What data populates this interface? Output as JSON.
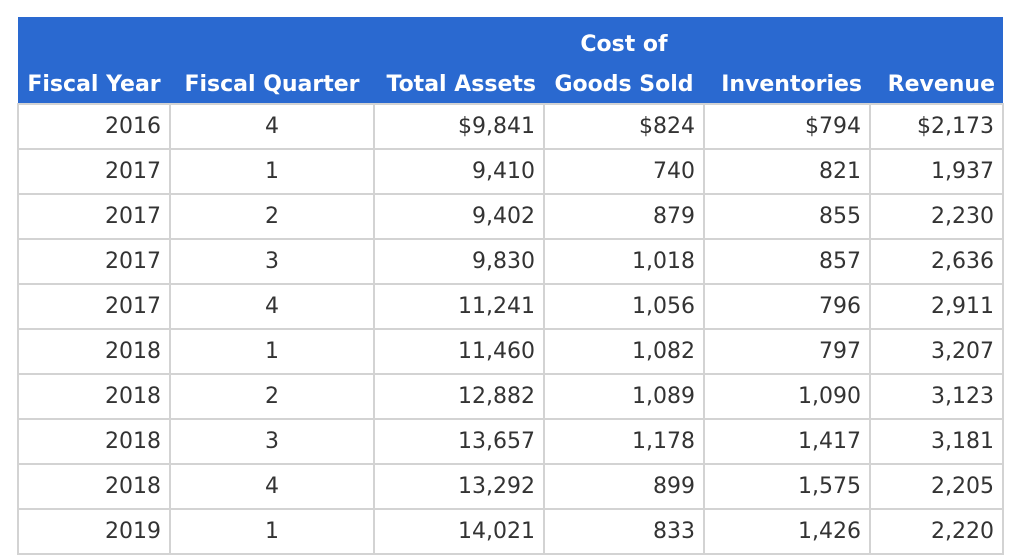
{
  "columns": [
    {
      "line1": "",
      "line2": "Fiscal Year"
    },
    {
      "line1": "",
      "line2": "Fiscal Quarter"
    },
    {
      "line1": "",
      "line2": "Total Assets"
    },
    {
      "line1": "Cost of",
      "line2": "Goods Sold"
    },
    {
      "line1": "",
      "line2": "Inventories"
    },
    {
      "line1": "",
      "line2": "Revenue"
    }
  ],
  "rows": [
    [
      "2016",
      "4",
      "$9,841",
      "$824",
      "$794",
      "$2,173"
    ],
    [
      "2017",
      "1",
      "9,410",
      "740",
      "821",
      "1,937"
    ],
    [
      "2017",
      "2",
      "9,402",
      "879",
      "855",
      "2,230"
    ],
    [
      "2017",
      "3",
      "9,830",
      "1,018",
      "857",
      "2,636"
    ],
    [
      "2017",
      "4",
      "11,241",
      "1,056",
      "796",
      "2,911"
    ],
    [
      "2018",
      "1",
      "11,460",
      "1,082",
      "797",
      "3,207"
    ],
    [
      "2018",
      "2",
      "12,882",
      "1,089",
      "1,090",
      "3,123"
    ],
    [
      "2018",
      "3",
      "13,657",
      "1,178",
      "1,417",
      "3,181"
    ],
    [
      "2018",
      "4",
      "13,292",
      "899",
      "1,575",
      "2,205"
    ],
    [
      "2019",
      "1",
      "14,021",
      "833",
      "1,426",
      "2,220"
    ]
  ],
  "colors": {
    "header_bg": "#2a69d0",
    "header_text": "#ffffff",
    "cell_text": "#333333",
    "grid": "#d3d3d3"
  }
}
